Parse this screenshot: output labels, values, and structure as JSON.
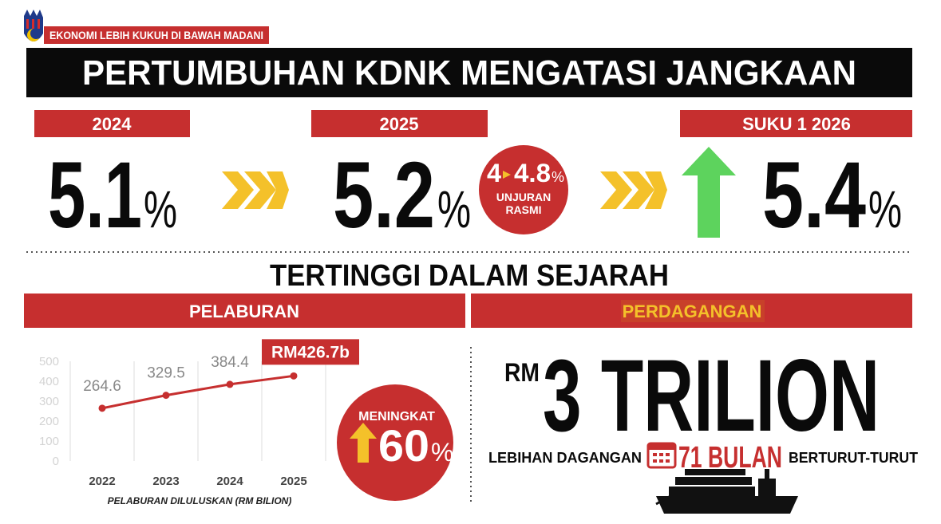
{
  "badge": "EKONOMI LEBIH KUKUH DI BAWAH MADANI",
  "title": "PERTUMBUHAN KDNK MENGATASI JANGKAAN",
  "periods": [
    {
      "label": "2024",
      "value": "5.1",
      "unit": "%"
    },
    {
      "label": "2025",
      "value": "5.2",
      "unit": "%"
    },
    {
      "label": "SUKU 1 2026",
      "value": "5.4",
      "unit": "%"
    }
  ],
  "projection": {
    "from": "4",
    "to": "4.8",
    "unit": "%",
    "label_1": "UNJURAN",
    "label_2": "RASMI"
  },
  "subtitle": "TERTINGGI DALAM SEJARAH",
  "sections": [
    "PELABURAN",
    "PERDAGANGAN"
  ],
  "chart_data": {
    "type": "line",
    "categories": [
      "2022",
      "2023",
      "2024",
      "2025"
    ],
    "values": [
      264.6,
      329.5,
      384.4,
      426.7
    ],
    "value_labels": [
      "264.6",
      "329.5",
      "384.4",
      "RM426.7b"
    ],
    "color": "#c62f2f",
    "ylim": [
      0,
      500
    ],
    "yticks": [
      0,
      100,
      200,
      300,
      400,
      500
    ],
    "xlabel": "PELABURAN DILULUSKAN (RM BILION)"
  },
  "increase": {
    "label": "MENINGKAT",
    "value": "60",
    "unit": "%"
  },
  "trade": {
    "currency": "RM",
    "amount": "3 TRILION",
    "caption_left": "LEBIHAN DAGANGAN",
    "streak": "71 BULAN",
    "caption_right": "BERTURUT-TURUT"
  }
}
